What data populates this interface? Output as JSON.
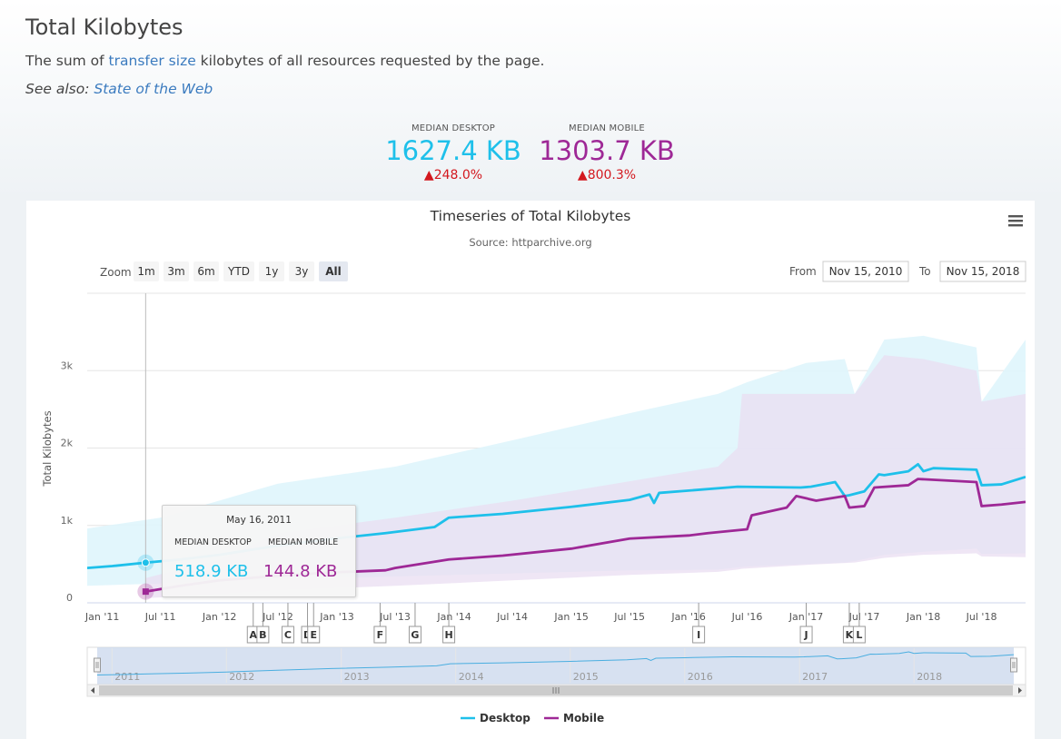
{
  "page": {
    "title": "Total Kilobytes",
    "desc_before": "The sum of ",
    "desc_link": "transfer size",
    "desc_after": " kilobytes of all resources requested by the page.",
    "see_also_label": "See also: ",
    "see_also_link": "State of the Web"
  },
  "metrics": {
    "desktop": {
      "label": "MEDIAN DESKTOP",
      "value": "1627.4 KB",
      "change": "▲248.0%"
    },
    "mobile": {
      "label": "MEDIAN MOBILE",
      "value": "1303.7 KB",
      "change": "▲800.3%"
    }
  },
  "controls": {
    "zoom_label": "Zoom",
    "zoom_buttons": [
      "1m",
      "3m",
      "6m",
      "YTD",
      "1y",
      "3y",
      "All"
    ],
    "active_zoom": "All",
    "from_label": "From",
    "from_value": "Nov 15, 2010",
    "to_label": "To",
    "to_value": "Nov 15, 2018",
    "menu_icon": "hamburger-menu-icon"
  },
  "tooltip": {
    "date": "May 16, 2011",
    "desktop_label": "MEDIAN DESKTOP",
    "mobile_label": "MEDIAN MOBILE",
    "desktop_value": "518.9 KB",
    "mobile_value": "144.8 KB"
  },
  "chart_data": {
    "type": "line",
    "title": "Timeseries of Total Kilobytes",
    "subtitle": "Source: httparchive.org",
    "ylabel": "Total Kilobytes",
    "xlim": [
      "2010-11-15",
      "2018-11-15"
    ],
    "ylim": [
      0,
      4000
    ],
    "y_ticks": [
      0,
      1000,
      2000,
      3000
    ],
    "y_tick_labels": [
      "0",
      "1k",
      "2k",
      "3k"
    ],
    "x_ticks": [
      "2011-01-01",
      "2011-07-01",
      "2012-01-01",
      "2012-07-01",
      "2013-01-01",
      "2013-07-01",
      "2014-01-01",
      "2014-07-01",
      "2015-01-01",
      "2015-07-01",
      "2016-01-01",
      "2016-07-01",
      "2017-01-01",
      "2017-07-01",
      "2018-01-01",
      "2018-07-01"
    ],
    "x_tick_labels": [
      "Jan '11",
      "Jul '11",
      "Jan '12",
      "Jul '12",
      "Jan '13",
      "Jul '13",
      "Jan '14",
      "Jul '14",
      "Jan '15",
      "Jul '15",
      "Jan '16",
      "Jul '16",
      "Jan '17",
      "Jul '17",
      "Jan '18",
      "Jul '18"
    ],
    "grid": true,
    "legend": "bottom-center",
    "colors": {
      "desktop": "#1ec0ea",
      "mobile": "#9e2896",
      "desktop_band": "#dff5fc",
      "mobile_band": "#e9ddf2"
    },
    "series": [
      {
        "name": "Desktop",
        "color": "#1ec0ea",
        "x": [
          "2010-11-15",
          "2011-02-01",
          "2011-05-16",
          "2011-09-01",
          "2012-01-01",
          "2012-06-01",
          "2012-12-01",
          "2013-06-01",
          "2013-11-01",
          "2013-12-15",
          "2014-06-01",
          "2015-01-01",
          "2015-07-01",
          "2015-09-01",
          "2015-09-15",
          "2015-10-01",
          "2016-01-01",
          "2016-06-01",
          "2016-12-15",
          "2017-01-15",
          "2017-04-01",
          "2017-05-01",
          "2017-05-15",
          "2017-07-01",
          "2017-08-15",
          "2017-09-01",
          "2017-11-15",
          "2017-12-15",
          "2018-01-01",
          "2018-02-01",
          "2018-06-15",
          "2018-07-01",
          "2018-09-01",
          "2018-11-15"
        ],
        "y": [
          450,
          475,
          519,
          560,
          620,
          720,
          820,
          900,
          980,
          1100,
          1150,
          1240,
          1330,
          1400,
          1290,
          1420,
          1450,
          1500,
          1490,
          1500,
          1560,
          1380,
          1390,
          1440,
          1660,
          1650,
          1700,
          1790,
          1700,
          1740,
          1720,
          1520,
          1530,
          1627
        ]
      },
      {
        "name": "Mobile",
        "color": "#9e2896",
        "x": [
          "2011-05-16",
          "2011-09-01",
          "2012-01-01",
          "2012-06-01",
          "2012-12-01",
          "2013-06-01",
          "2013-07-01",
          "2013-12-15",
          "2014-06-01",
          "2015-01-01",
          "2015-07-01",
          "2016-01-01",
          "2016-03-01",
          "2016-07-01",
          "2016-07-15",
          "2016-11-01",
          "2016-12-01",
          "2017-02-01",
          "2017-05-01",
          "2017-05-15",
          "2017-07-01",
          "2017-08-01",
          "2017-11-15",
          "2017-12-15",
          "2018-06-15",
          "2018-07-01",
          "2018-09-01",
          "2018-11-15"
        ],
        "y": [
          145,
          220,
          290,
          340,
          390,
          420,
          450,
          560,
          610,
          700,
          830,
          870,
          900,
          950,
          1130,
          1230,
          1380,
          1320,
          1380,
          1230,
          1250,
          1490,
          1520,
          1600,
          1560,
          1250,
          1270,
          1304
        ]
      }
    ],
    "bands": [
      {
        "name": "Desktop",
        "x": [
          "2010-11-15",
          "2011-07-01",
          "2012-07-01",
          "2013-07-01",
          "2014-07-01",
          "2015-07-01",
          "2016-04-01",
          "2016-07-01",
          "2017-01-01",
          "2017-05-01",
          "2017-06-01",
          "2017-09-01",
          "2018-01-01",
          "2018-06-15",
          "2018-07-01",
          "2018-11-15"
        ],
        "low": [
          220,
          250,
          300,
          340,
          380,
          420,
          430,
          470,
          500,
          520,
          540,
          620,
          660,
          700,
          630,
          640
        ],
        "high": [
          960,
          1100,
          1540,
          1760,
          2100,
          2450,
          2700,
          2850,
          3100,
          3150,
          2700,
          3400,
          3450,
          3300,
          2600,
          3400
        ]
      },
      {
        "name": "Mobile",
        "x": [
          "2011-05-16",
          "2012-01-01",
          "2012-07-01",
          "2013-07-01",
          "2014-07-01",
          "2015-07-01",
          "2016-04-01",
          "2016-06-01",
          "2016-06-15",
          "2017-01-01",
          "2017-06-01",
          "2017-09-01",
          "2018-01-01",
          "2018-06-15",
          "2018-07-01",
          "2018-11-15"
        ],
        "low": [
          60,
          110,
          160,
          220,
          290,
          360,
          400,
          430,
          440,
          490,
          520,
          580,
          620,
          640,
          600,
          590
        ],
        "high": [
          320,
          560,
          900,
          1100,
          1320,
          1570,
          1760,
          2000,
          2700,
          2700,
          2700,
          3200,
          3150,
          3000,
          2600,
          2700
        ]
      }
    ],
    "annotations": [
      {
        "label": "A",
        "x": "2012-04-15"
      },
      {
        "label": "B",
        "x": "2012-05-15"
      },
      {
        "label": "C",
        "x": "2012-08-01"
      },
      {
        "label": "D",
        "x": "2012-10-01"
      },
      {
        "label": "E",
        "x": "2012-10-20"
      },
      {
        "label": "F",
        "x": "2013-05-15"
      },
      {
        "label": "G",
        "x": "2013-09-01"
      },
      {
        "label": "H",
        "x": "2013-12-15"
      },
      {
        "label": "I",
        "x": "2016-02-01"
      },
      {
        "label": "J",
        "x": "2017-01-01"
      },
      {
        "label": "K",
        "x": "2017-05-15"
      },
      {
        "label": "L",
        "x": "2017-06-15"
      }
    ],
    "navigator": {
      "year_labels": [
        "2011",
        "2012",
        "2013",
        "2014",
        "2015",
        "2016",
        "2017",
        "2018"
      ],
      "year_starts": [
        "2011-01-01",
        "2012-01-01",
        "2013-01-01",
        "2014-01-01",
        "2015-01-01",
        "2016-01-01",
        "2017-01-01",
        "2018-01-01"
      ]
    }
  }
}
